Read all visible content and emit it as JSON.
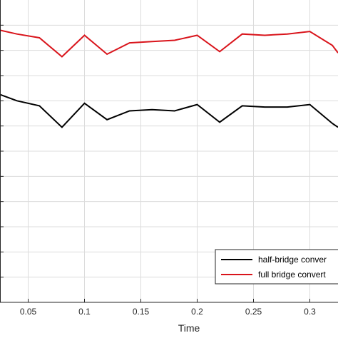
{
  "chart_data": {
    "type": "line",
    "xlabel": "Time",
    "ylabel": "",
    "title": "",
    "xlim": [
      0.025,
      0.325
    ],
    "ylim": [
      0,
      12
    ],
    "grid": true,
    "legend_position": "bottom-right",
    "x_ticks": [
      0.05,
      0.1,
      0.15,
      0.2,
      0.25,
      0.3
    ],
    "x_tick_labels": [
      "0.05",
      "0.1",
      "0.15",
      "0.2",
      "0.25",
      "0.3"
    ],
    "x": [
      0.025,
      0.04,
      0.06,
      0.08,
      0.1,
      0.12,
      0.14,
      0.16,
      0.18,
      0.2,
      0.22,
      0.24,
      0.26,
      0.28,
      0.3,
      0.32,
      0.325
    ],
    "series": [
      {
        "name": "half-bridge conver",
        "color": "#000000",
        "values": [
          8.25,
          8.0,
          7.8,
          6.95,
          7.9,
          7.25,
          7.6,
          7.65,
          7.6,
          7.85,
          7.15,
          7.8,
          7.75,
          7.75,
          7.85,
          7.1,
          6.95
        ]
      },
      {
        "name": "full bridge convert",
        "color": "#d9141b",
        "values": [
          10.8,
          10.65,
          10.5,
          9.75,
          10.6,
          9.85,
          10.3,
          10.35,
          10.4,
          10.6,
          9.95,
          10.65,
          10.6,
          10.65,
          10.75,
          10.2,
          9.9
        ]
      }
    ]
  }
}
